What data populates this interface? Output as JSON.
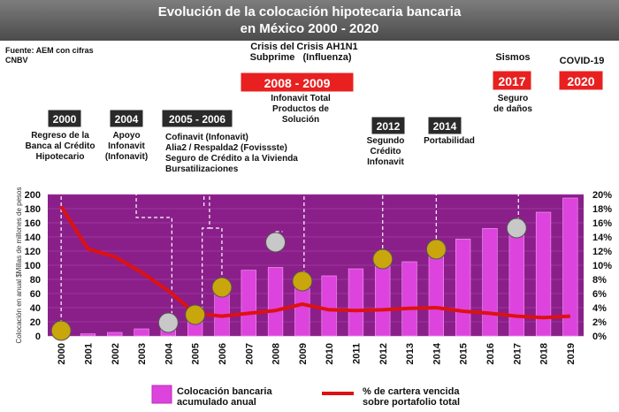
{
  "title": [
    "Evolución de la colocación hipotecaria bancaria",
    "en México 2000 - 2020"
  ],
  "source": [
    "Fuente: AEM con cifras",
    "CNBV"
  ],
  "chart_data": {
    "type": "bar",
    "categories": [
      "2000",
      "2001",
      "2002",
      "2003",
      "2004",
      "2005",
      "2006",
      "2007",
      "2008",
      "2009",
      "2010",
      "2011",
      "2012",
      "2013",
      "2014",
      "2015",
      "2016",
      "2017",
      "2018",
      "2019"
    ],
    "series": [
      {
        "name": "Colocación bancaria acumulado anual",
        "type": "bar",
        "axis": "left",
        "values": [
          1,
          3,
          5,
          10,
          15,
          28,
          62,
          93,
          97,
          80,
          85,
          95,
          100,
          105,
          115,
          137,
          152,
          155,
          175,
          195
        ]
      },
      {
        "name": "% de cartera vencida sobre portafolio total",
        "type": "line",
        "axis": "right",
        "values": [
          18.3,
          12.3,
          11.2,
          9.0,
          6.4,
          3.2,
          2.8,
          3.2,
          3.6,
          4.5,
          3.7,
          3.6,
          3.7,
          3.9,
          4.0,
          3.5,
          3.2,
          2.8,
          2.6,
          2.8
        ]
      }
    ],
    "ylabel": "Colocación en anual $Millas de millones de pesos",
    "ylim": [
      0,
      200
    ],
    "yticks": [
      0,
      20,
      40,
      60,
      80,
      100,
      120,
      140,
      160,
      180,
      200
    ],
    "y2lim": [
      0,
      20
    ],
    "y2ticks": [
      "0%",
      "2%",
      "4%",
      "6%",
      "8%",
      "10%",
      "12%",
      "14%",
      "16%",
      "18%",
      "20%"
    ],
    "colors": {
      "bar": "#dd44dd",
      "line": "#dd1111",
      "plot_bg": "#8a1f8a",
      "marker": "#c9a60c",
      "marker_gray": "#c8c8c8",
      "year_dark": "#2a2a2a",
      "year_red": "#e82020"
    },
    "markers": [
      {
        "year": "2000",
        "color": "gold"
      },
      {
        "year": "2004",
        "color": "gray"
      },
      {
        "year": "2005",
        "color": "gold"
      },
      {
        "year": "2006",
        "color": "gold"
      },
      {
        "year": "2008",
        "color": "gray"
      },
      {
        "year": "2009",
        "color": "gold"
      },
      {
        "year": "2012",
        "color": "gold"
      },
      {
        "year": "2014",
        "color": "gold"
      },
      {
        "year": "2017",
        "color": "gray"
      }
    ],
    "annotations": [
      {
        "year": "2000",
        "style": "dark",
        "lines": [
          "Regreso de la",
          "Banca al Crédito",
          "Hipotecario"
        ]
      },
      {
        "year": "2004",
        "style": "dark",
        "lines": [
          "Apoyo",
          "Infonavit",
          "(Infonavit)"
        ]
      },
      {
        "year": "2005 - 2006",
        "style": "dark",
        "lines": [
          "Cofinavit (Infonavit)",
          "Alia2 / Respalda2 (Fovissste)",
          "Seguro de Crédito a la Vivienda",
          "Bursatilizaciones"
        ]
      },
      {
        "year": "2008 - 2009",
        "style": "red",
        "top": [
          "Crisis del",
          "Subprime"
        ],
        "top2": [
          "Crisis AH1N1",
          "(Influenza)"
        ],
        "lines": [
          "Infonavit Total",
          "Productos de",
          "Solución"
        ]
      },
      {
        "year": "2012",
        "style": "dark",
        "lines": [
          "Segundo",
          "Crédito",
          "Infonavit"
        ]
      },
      {
        "year": "2014",
        "style": "dark",
        "lines": [
          "Portabilidad"
        ]
      },
      {
        "year": "2017",
        "style": "red",
        "top": [
          "Sismos"
        ],
        "lines": [
          "Seguro",
          "de daños"
        ]
      },
      {
        "year": "2020",
        "style": "red",
        "top": [
          "COVID-19"
        ],
        "lines": []
      }
    ],
    "legend": [
      {
        "label": [
          "Colocación bancaria",
          "acumulado anual"
        ]
      },
      {
        "label": [
          "% de cartera vencida",
          "sobre portafolio total"
        ]
      }
    ]
  }
}
